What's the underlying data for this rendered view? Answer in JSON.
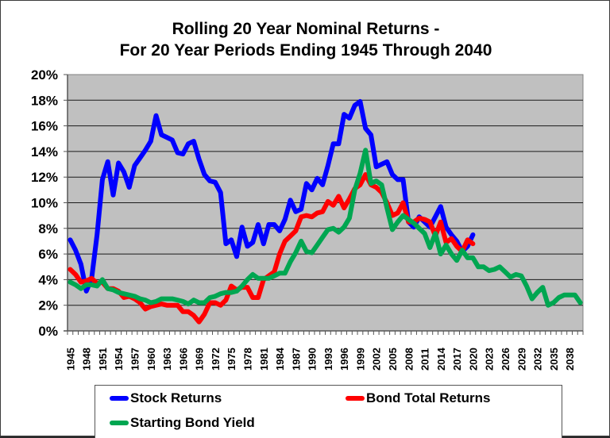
{
  "chart_data": {
    "type": "line",
    "title": "Rolling 20 Year Nominal Returns -",
    "subtitle": "For 20 Year Periods Ending 1945 Through 2040",
    "xlabel": "",
    "ylabel": "",
    "xlim": [
      1945,
      2040
    ],
    "ylim": [
      0,
      20
    ],
    "y_ticks": [
      "0%",
      "2%",
      "4%",
      "6%",
      "8%",
      "10%",
      "12%",
      "14%",
      "16%",
      "18%",
      "20%"
    ],
    "x_tick_labels": [
      "1945",
      "1948",
      "1951",
      "1954",
      "1957",
      "1960",
      "1963",
      "1966",
      "1969",
      "1972",
      "1975",
      "1978",
      "1981",
      "1984",
      "1987",
      "1990",
      "1993",
      "1996",
      "1999",
      "2002",
      "2005",
      "2008",
      "2011",
      "2014",
      "2017",
      "2020",
      "2023",
      "2026",
      "2029",
      "2032",
      "2035",
      "2038"
    ],
    "grid": true,
    "legend_position": "bottom",
    "series": [
      {
        "name": "Stock Returns",
        "color": "#0000ff",
        "start_year": 1945,
        "values": [
          7.1,
          6.3,
          5.2,
          3.1,
          4.1,
          7.5,
          11.8,
          13.2,
          10.6,
          13.1,
          12.4,
          11.2,
          12.9,
          13.5,
          14.1,
          14.8,
          16.8,
          15.3,
          15.1,
          14.9,
          13.9,
          13.8,
          14.6,
          14.8,
          13.4,
          12.2,
          11.7,
          11.6,
          10.8,
          6.8,
          7.1,
          5.8,
          8.1,
          6.6,
          6.9,
          8.3,
          6.8,
          8.3,
          8.3,
          7.8,
          8.7,
          10.2,
          9.3,
          9.5,
          11.5,
          11.0,
          11.9,
          11.4,
          12.9,
          14.6,
          14.6,
          16.9,
          16.6,
          17.6,
          17.9,
          15.8,
          15.3,
          12.8,
          13.0,
          13.2,
          12.2,
          11.8,
          11.8,
          8.5,
          8.1,
          8.9,
          8.5,
          8.1,
          8.9,
          9.7,
          8.1,
          7.5,
          7.0,
          6.2,
          6.6,
          7.5
        ]
      },
      {
        "name": "Bond Total Returns",
        "color": "#ff0000",
        "start_year": 1945,
        "values": [
          4.8,
          4.4,
          3.8,
          3.9,
          4.1,
          3.7,
          3.8,
          3.3,
          3.3,
          3.1,
          2.6,
          2.7,
          2.5,
          2.2,
          1.7,
          1.9,
          2.0,
          2.1,
          2.0,
          2.0,
          2.0,
          1.5,
          1.5,
          1.2,
          0.7,
          1.3,
          2.2,
          2.2,
          2.0,
          2.4,
          3.5,
          3.2,
          3.4,
          3.4,
          2.6,
          2.6,
          4.0,
          4.3,
          4.6,
          6.0,
          7.0,
          7.4,
          7.8,
          8.9,
          9.0,
          8.9,
          9.2,
          9.3,
          10.1,
          9.8,
          10.5,
          9.6,
          10.3,
          11.1,
          11.4,
          12.2,
          11.4,
          11.2,
          10.8,
          10.0,
          9.0,
          9.2,
          10.0,
          8.5,
          8.5,
          8.8,
          8.7,
          8.5,
          7.4,
          8.5,
          6.9,
          7.2,
          6.6,
          6.2,
          7.1,
          6.8
        ]
      },
      {
        "name": "Starting Bond Yield",
        "color": "#00a651",
        "start_year": 1945,
        "values": [
          3.8,
          3.6,
          3.3,
          3.6,
          3.6,
          3.5,
          4.0,
          3.3,
          3.2,
          3.0,
          2.9,
          2.8,
          2.7,
          2.5,
          2.4,
          2.2,
          2.3,
          2.5,
          2.5,
          2.5,
          2.4,
          2.3,
          2.1,
          2.4,
          2.2,
          2.2,
          2.6,
          2.7,
          2.9,
          3.0,
          3.0,
          3.1,
          3.5,
          4.0,
          4.4,
          4.1,
          4.1,
          4.1,
          4.3,
          4.5,
          4.5,
          5.4,
          6.1,
          7.0,
          6.2,
          6.1,
          6.7,
          7.3,
          7.9,
          8.0,
          7.7,
          8.1,
          8.8,
          11.0,
          12.3,
          14.1,
          11.5,
          11.7,
          11.4,
          9.6,
          7.9,
          8.5,
          9.0,
          8.7,
          8.4,
          8.0,
          7.6,
          6.5,
          7.6,
          6.0,
          6.7,
          6.0,
          5.5,
          6.3,
          5.7,
          5.7,
          5.0,
          5.0,
          4.7,
          4.8,
          5.0,
          4.6,
          4.2,
          4.4,
          4.3,
          3.5,
          2.5,
          3.0,
          3.4,
          2.0,
          2.2,
          2.6,
          2.8,
          2.8,
          2.8,
          2.2
        ]
      }
    ]
  },
  "legend": {
    "items": [
      {
        "label": "Stock Returns",
        "color": "#0000ff"
      },
      {
        "label": "Bond Total Returns",
        "color": "#ff0000"
      },
      {
        "label": "Starting Bond Yield",
        "color": "#00a651"
      }
    ]
  }
}
